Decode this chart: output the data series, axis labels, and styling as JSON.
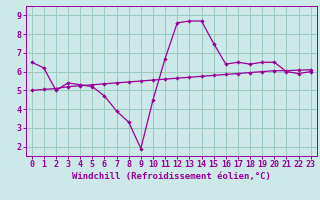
{
  "xlabel": "Windchill (Refroidissement éolien,°C)",
  "bg_color": "#cce8e8",
  "grid_color": "#99ccbb",
  "line_color": "#990099",
  "x_values": [
    0,
    1,
    2,
    3,
    4,
    5,
    6,
    7,
    8,
    9,
    10,
    11,
    12,
    13,
    14,
    15,
    16,
    17,
    18,
    19,
    20,
    21,
    22,
    23
  ],
  "y1_values": [
    6.5,
    6.2,
    5.0,
    5.4,
    5.3,
    5.2,
    4.7,
    3.9,
    3.3,
    1.9,
    4.5,
    6.7,
    8.6,
    8.7,
    8.7,
    7.5,
    6.4,
    6.5,
    6.4,
    6.5,
    6.5,
    6.0,
    5.9,
    6.0
  ],
  "y2_values": [
    5.0,
    5.05,
    5.1,
    5.2,
    5.25,
    5.3,
    5.35,
    5.4,
    5.45,
    5.5,
    5.55,
    5.6,
    5.65,
    5.7,
    5.75,
    5.8,
    5.85,
    5.9,
    5.95,
    6.0,
    6.05,
    6.05,
    6.08,
    6.1
  ],
  "ylim": [
    1.5,
    9.5
  ],
  "yticks": [
    2,
    3,
    4,
    5,
    6,
    7,
    8,
    9
  ],
  "xlim": [
    -0.5,
    23.5
  ],
  "xticks": [
    0,
    1,
    2,
    3,
    4,
    5,
    6,
    7,
    8,
    9,
    10,
    11,
    12,
    13,
    14,
    15,
    16,
    17,
    18,
    19,
    20,
    21,
    22,
    23
  ],
  "xlabel_fontsize": 6.5,
  "tick_fontsize": 6.0,
  "lw": 0.9,
  "marker_size": 2.2
}
